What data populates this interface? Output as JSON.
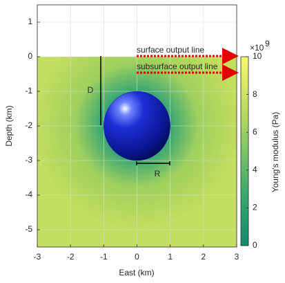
{
  "chart_data": {
    "type": "field",
    "xlabel": "East (km)",
    "ylabel": "Depth (km)",
    "xlim": [
      -3,
      3
    ],
    "ylim": [
      -5.5,
      1.5
    ],
    "xticks": [
      -3,
      -2,
      -1,
      0,
      1,
      2,
      3
    ],
    "yticks": [
      1,
      0,
      -1,
      -2,
      -3,
      -4,
      -5
    ],
    "grid": true,
    "sphere": {
      "x": 0,
      "y": -2,
      "radius": 1,
      "color": "#0a1590"
    },
    "colorbar": {
      "label": "Young's modulus (Pa)",
      "multiplier": "×10",
      "exponent": "9",
      "clim": [
        0,
        10
      ],
      "ticks": [
        0,
        2,
        4,
        6,
        8,
        10
      ]
    },
    "annotations": [
      "surface output line",
      "subsurface output line",
      "D",
      "R"
    ]
  }
}
